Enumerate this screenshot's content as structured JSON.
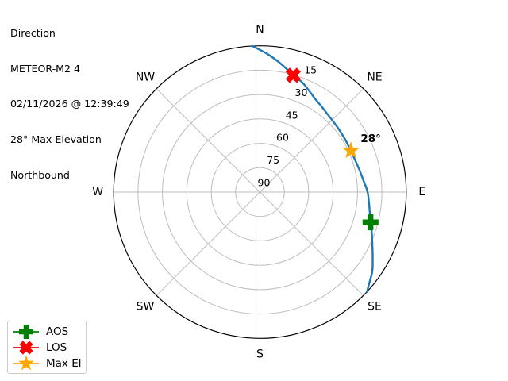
{
  "header": {
    "lines": [
      "Direction",
      "METEOR-M2 4",
      "02/11/2026 @ 12:39:49",
      "28° Max Elevation",
      "Northbound"
    ]
  },
  "legend": {
    "items": [
      {
        "label": "AOS",
        "color": "#008000",
        "marker": "plus"
      },
      {
        "label": "LOS",
        "color": "#ff0000",
        "marker": "x"
      },
      {
        "label": "Max El",
        "color": "#ffa500",
        "marker": "star"
      }
    ]
  },
  "chart_data": {
    "type": "line",
    "projection": "polar-sky-plot",
    "grid": true,
    "grid_color": "#bdbdbd",
    "outline_color": "#000000",
    "compass_labels": [
      {
        "text": "N",
        "az": 0
      },
      {
        "text": "NE",
        "az": 45
      },
      {
        "text": "E",
        "az": 90
      },
      {
        "text": "SE",
        "az": 135
      },
      {
        "text": "S",
        "az": 180
      },
      {
        "text": "SW",
        "az": 225
      },
      {
        "text": "W",
        "az": 270
      },
      {
        "text": "NW",
        "az": 315
      }
    ],
    "elevation_ticks": [
      15,
      30,
      45,
      60,
      75,
      90
    ],
    "elevation_tick_azimuth_deg": 22.5,
    "elevation_range": [
      0,
      90
    ],
    "spoke_step_deg": 45,
    "series": [
      {
        "name": "pass-track",
        "color": "#1f77b4",
        "points_az_el": [
          [
            133,
            0
          ],
          [
            129,
            3
          ],
          [
            125,
            5.6
          ],
          [
            120.5,
            9.5
          ],
          [
            116,
            13
          ],
          [
            110.5,
            16.5
          ],
          [
            105.3,
            19.5
          ],
          [
            98,
            22
          ],
          [
            90,
            23.8
          ],
          [
            84,
            25.8
          ],
          [
            78,
            27.2
          ],
          [
            71.5,
            28.2
          ],
          [
            65.5,
            28.6
          ],
          [
            58.5,
            28.4
          ],
          [
            52,
            28
          ],
          [
            46,
            27.4
          ],
          [
            41.5,
            26.7
          ],
          [
            36,
            25.2
          ],
          [
            31,
            23.5
          ],
          [
            26,
            20.8
          ],
          [
            21,
            17.6
          ],
          [
            15.9,
            15.3
          ],
          [
            12,
            12.3
          ],
          [
            8,
            9
          ],
          [
            3,
            4.8
          ],
          [
            357,
            0
          ]
        ]
      }
    ],
    "markers": [
      {
        "name": "AOS",
        "az": 105.3,
        "el": 19.5,
        "shape": "plus",
        "color": "#008000"
      },
      {
        "name": "LOS",
        "az": 15.9,
        "el": 15.3,
        "shape": "x",
        "color": "#ff0000"
      },
      {
        "name": "Max El",
        "az": 65.5,
        "el": 28.5,
        "shape": "star",
        "color": "#ffa500"
      }
    ],
    "annotations": [
      {
        "text": "28°",
        "az": 65.5,
        "el": 28.5,
        "offset_x": 25,
        "offset_y": -15,
        "bold": true
      }
    ]
  }
}
